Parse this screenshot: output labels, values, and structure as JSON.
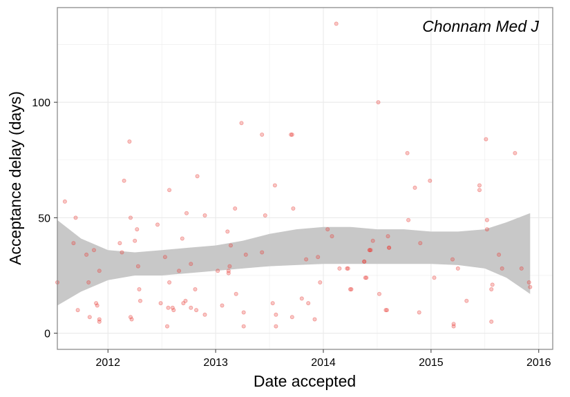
{
  "chart_data": {
    "type": "scatter",
    "title": "Chonnam Med J",
    "xlabel": "Date accepted",
    "ylabel": "Acceptance delay (days)",
    "x_ticks": [
      "2012",
      "2013",
      "2014",
      "2015",
      "2016"
    ],
    "x_tick_values": [
      2012,
      2013,
      2014,
      2015,
      2016
    ],
    "y_ticks": [
      "0",
      "50",
      "100"
    ],
    "y_tick_values": [
      0,
      50,
      100
    ],
    "xlim": [
      2011.53,
      2016.13
    ],
    "ylim": [
      -7,
      141
    ],
    "grid": true,
    "colors": {
      "points": "#e8413b",
      "smooth_band": "#c8c8c8",
      "grid": "#ebebeb",
      "panel_border": "#8c8c8c"
    },
    "points": [
      [
        2011.53,
        22
      ],
      [
        2011.6,
        57
      ],
      [
        2011.68,
        39
      ],
      [
        2011.72,
        10
      ],
      [
        2011.7,
        50
      ],
      [
        2011.8,
        34
      ],
      [
        2011.82,
        22
      ],
      [
        2011.83,
        7
      ],
      [
        2011.87,
        36
      ],
      [
        2011.89,
        13
      ],
      [
        2011.9,
        12
      ],
      [
        2011.92,
        6
      ],
      [
        2011.92,
        5
      ],
      [
        2011.92,
        27
      ],
      [
        2012.11,
        39
      ],
      [
        2012.13,
        35
      ],
      [
        2012.15,
        66
      ],
      [
        2012.2,
        83
      ],
      [
        2012.21,
        50
      ],
      [
        2012.21,
        7
      ],
      [
        2012.22,
        6
      ],
      [
        2012.25,
        40
      ],
      [
        2012.27,
        45
      ],
      [
        2012.28,
        29
      ],
      [
        2012.29,
        19
      ],
      [
        2012.3,
        14
      ],
      [
        2012.46,
        47
      ],
      [
        2012.49,
        13
      ],
      [
        2012.53,
        33
      ],
      [
        2012.55,
        3
      ],
      [
        2012.56,
        11
      ],
      [
        2012.57,
        62
      ],
      [
        2012.57,
        22
      ],
      [
        2012.6,
        11
      ],
      [
        2012.61,
        10
      ],
      [
        2012.66,
        27
      ],
      [
        2012.69,
        41
      ],
      [
        2012.7,
        13
      ],
      [
        2012.72,
        14
      ],
      [
        2012.73,
        52
      ],
      [
        2012.77,
        11
      ],
      [
        2012.77,
        30
      ],
      [
        2012.81,
        19
      ],
      [
        2012.82,
        10
      ],
      [
        2012.83,
        68
      ],
      [
        2012.9,
        51
      ],
      [
        2012.9,
        8
      ],
      [
        2013.02,
        27
      ],
      [
        2013.06,
        12
      ],
      [
        2013.11,
        44
      ],
      [
        2013.12,
        26
      ],
      [
        2013.12,
        27
      ],
      [
        2013.13,
        29
      ],
      [
        2013.14,
        38
      ],
      [
        2013.18,
        54
      ],
      [
        2013.19,
        17
      ],
      [
        2013.24,
        91
      ],
      [
        2013.26,
        9
      ],
      [
        2013.26,
        3
      ],
      [
        2013.28,
        34
      ],
      [
        2013.43,
        86
      ],
      [
        2013.43,
        35
      ],
      [
        2013.46,
        51
      ],
      [
        2013.53,
        13
      ],
      [
        2013.55,
        64
      ],
      [
        2013.56,
        8
      ],
      [
        2013.56,
        3
      ],
      [
        2013.7,
        86
      ],
      [
        2013.71,
        86
      ],
      [
        2013.71,
        7
      ],
      [
        2013.72,
        54
      ],
      [
        2013.8,
        15
      ],
      [
        2013.84,
        32
      ],
      [
        2013.86,
        13
      ],
      [
        2013.92,
        6
      ],
      [
        2013.95,
        33
      ],
      [
        2013.97,
        22
      ],
      [
        2014.04,
        45
      ],
      [
        2014.08,
        42
      ],
      [
        2014.12,
        134
      ],
      [
        2014.15,
        28
      ],
      [
        2014.22,
        28
      ],
      [
        2014.23,
        28
      ],
      [
        2014.25,
        19
      ],
      [
        2014.26,
        19
      ],
      [
        2014.38,
        31
      ],
      [
        2014.38,
        31
      ],
      [
        2014.39,
        24
      ],
      [
        2014.4,
        24
      ],
      [
        2014.43,
        36
      ],
      [
        2014.43,
        36
      ],
      [
        2014.44,
        36
      ],
      [
        2014.46,
        40
      ],
      [
        2014.51,
        100
      ],
      [
        2014.52,
        17
      ],
      [
        2014.58,
        10
      ],
      [
        2014.59,
        10
      ],
      [
        2014.6,
        42
      ],
      [
        2014.61,
        37
      ],
      [
        2014.61,
        37
      ],
      [
        2014.78,
        78
      ],
      [
        2014.79,
        49
      ],
      [
        2014.85,
        63
      ],
      [
        2014.89,
        9
      ],
      [
        2014.9,
        39
      ],
      [
        2014.99,
        66
      ],
      [
        2015.03,
        24
      ],
      [
        2015.2,
        32
      ],
      [
        2015.21,
        4
      ],
      [
        2015.21,
        3
      ],
      [
        2015.25,
        28
      ],
      [
        2015.33,
        14
      ],
      [
        2015.45,
        64
      ],
      [
        2015.45,
        62
      ],
      [
        2015.51,
        84
      ],
      [
        2015.52,
        49
      ],
      [
        2015.52,
        45
      ],
      [
        2015.56,
        5
      ],
      [
        2015.56,
        19
      ],
      [
        2015.57,
        21
      ],
      [
        2015.63,
        34
      ],
      [
        2015.66,
        28
      ],
      [
        2015.78,
        78
      ],
      [
        2015.84,
        28
      ],
      [
        2015.91,
        22
      ],
      [
        2015.92,
        20
      ]
    ],
    "smooth_band": {
      "x": [
        2011.53,
        2011.75,
        2012.0,
        2012.25,
        2012.5,
        2012.75,
        2013.0,
        2013.25,
        2013.5,
        2013.75,
        2014.0,
        2014.25,
        2014.5,
        2014.75,
        2015.0,
        2015.25,
        2015.5,
        2015.7,
        2015.92
      ],
      "upper": [
        49,
        41,
        36,
        35,
        36,
        37,
        38,
        40,
        43,
        45,
        46,
        46,
        45,
        45,
        44,
        44,
        45,
        48,
        52
      ],
      "lower": [
        12,
        18,
        23,
        25,
        25,
        26,
        27,
        28,
        29,
        29.5,
        30,
        30,
        30,
        30,
        30,
        29.5,
        28,
        24,
        17
      ]
    }
  }
}
